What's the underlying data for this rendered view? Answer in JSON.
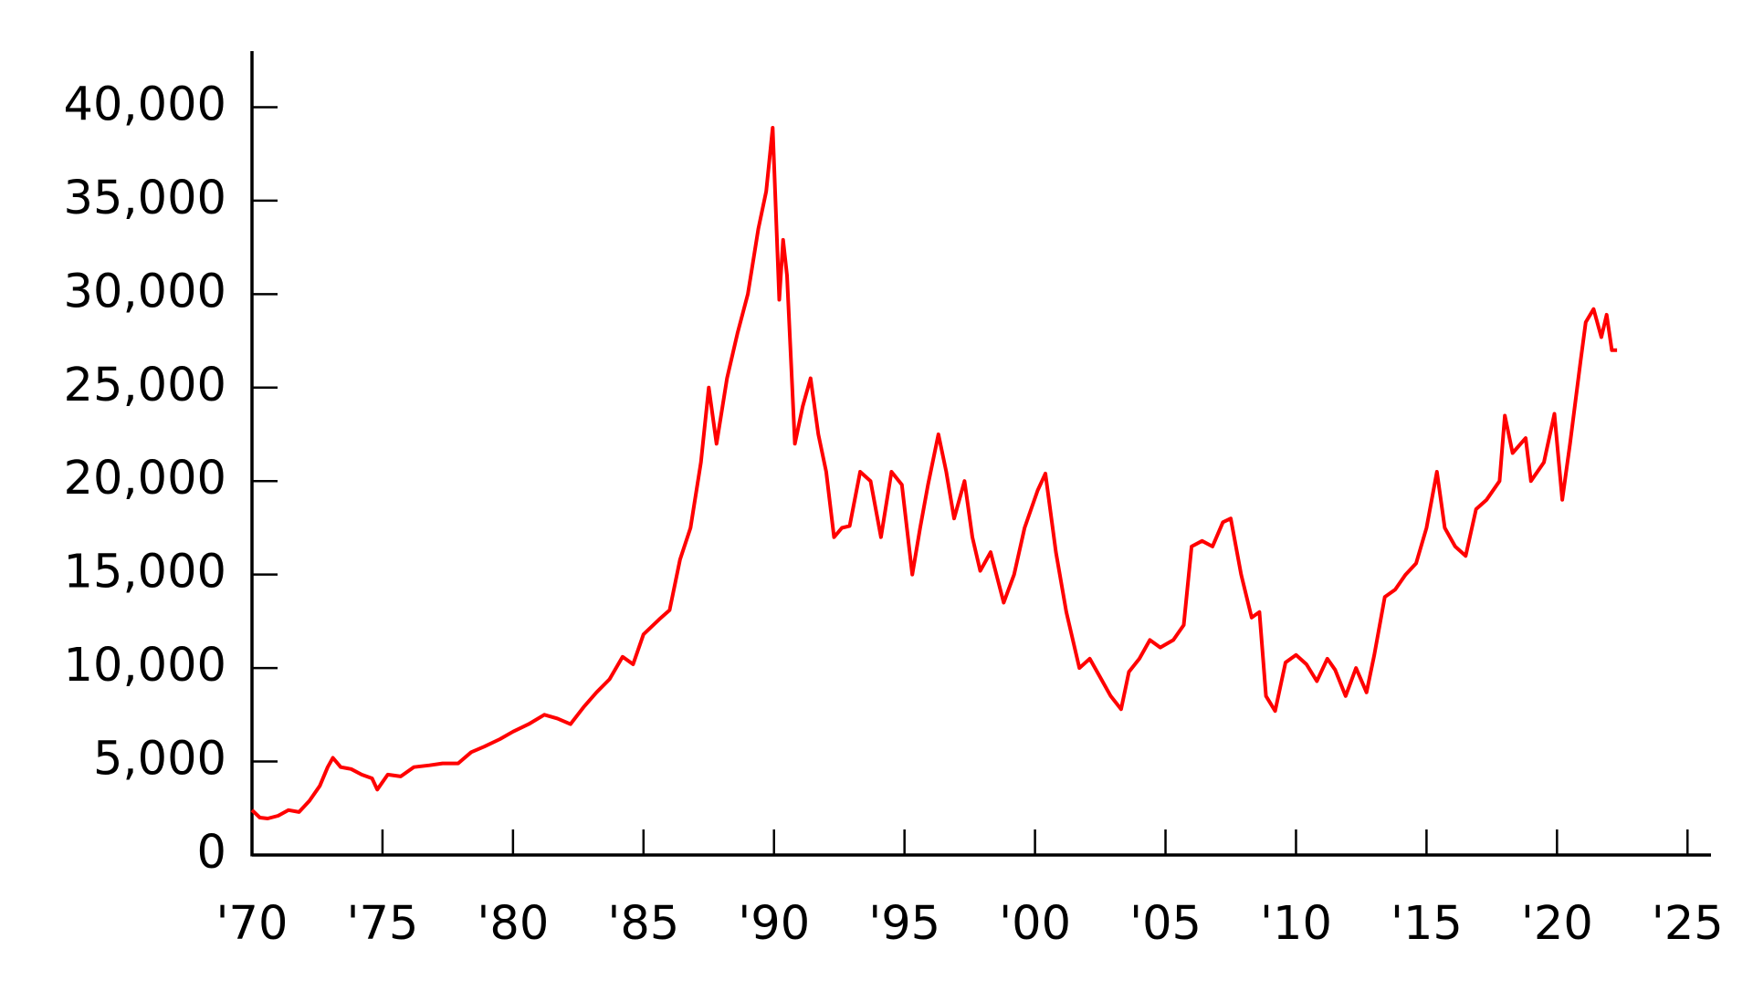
{
  "chart_data": {
    "type": "line",
    "x": [
      1970.0,
      1970.3,
      1970.6,
      1971.0,
      1971.4,
      1971.8,
      1972.2,
      1972.6,
      1972.9,
      1973.1,
      1973.4,
      1973.8,
      1974.2,
      1974.6,
      1974.8,
      1975.2,
      1975.7,
      1976.2,
      1976.8,
      1977.3,
      1977.9,
      1978.4,
      1978.9,
      1979.5,
      1980.0,
      1980.6,
      1981.2,
      1981.7,
      1982.2,
      1982.7,
      1983.2,
      1983.7,
      1984.2,
      1984.6,
      1985.0,
      1985.6,
      1986.0,
      1986.4,
      1986.8,
      1987.2,
      1987.5,
      1987.8,
      1988.2,
      1988.6,
      1989.0,
      1989.4,
      1989.7,
      1989.95,
      1990.2,
      1990.35,
      1990.5,
      1990.8,
      1991.1,
      1991.4,
      1991.7,
      1992.0,
      1992.3,
      1992.6,
      1992.9,
      1993.3,
      1993.7,
      1994.1,
      1994.5,
      1994.9,
      1995.3,
      1995.6,
      1995.9,
      1996.3,
      1996.6,
      1996.9,
      1997.3,
      1997.6,
      1997.9,
      1998.3,
      1998.8,
      1999.2,
      1999.6,
      2000.1,
      2000.4,
      2000.8,
      2001.2,
      2001.7,
      2002.1,
      2002.5,
      2002.9,
      2003.3,
      2003.6,
      2004.0,
      2004.4,
      2004.8,
      2005.3,
      2005.7,
      2006.0,
      2006.4,
      2006.8,
      2007.2,
      2007.5,
      2007.9,
      2008.3,
      2008.6,
      2008.85,
      2009.2,
      2009.6,
      2010.0,
      2010.4,
      2010.8,
      2011.2,
      2011.5,
      2011.9,
      2012.3,
      2012.7,
      2013.0,
      2013.4,
      2013.8,
      2014.2,
      2014.6,
      2015.0,
      2015.4,
      2015.7,
      2016.1,
      2016.5,
      2016.9,
      2017.3,
      2017.8,
      2018.0,
      2018.3,
      2018.8,
      2019.0,
      2019.5,
      2019.9,
      2020.2,
      2020.5,
      2020.9,
      2021.1,
      2021.4,
      2021.7,
      2021.9,
      2022.1,
      2022.3
    ],
    "values": [
      2400,
      2000,
      1950,
      2100,
      2400,
      2300,
      2900,
      3700,
      4700,
      5200,
      4700,
      4600,
      4300,
      4100,
      3500,
      4300,
      4200,
      4700,
      4800,
      4900,
      4900,
      5500,
      5800,
      6200,
      6600,
      7000,
      7500,
      7300,
      7000,
      7900,
      8700,
      9400,
      10600,
      10200,
      11800,
      12600,
      13100,
      15800,
      17500,
      21000,
      25000,
      22000,
      25500,
      27900,
      30000,
      33500,
      35500,
      38900,
      29700,
      32900,
      31000,
      22000,
      24000,
      25500,
      22500,
      20500,
      17000,
      17500,
      17600,
      20500,
      20000,
      17000,
      20500,
      19800,
      15000,
      17500,
      19800,
      22500,
      20500,
      18000,
      20000,
      17000,
      15200,
      16200,
      13500,
      15000,
      17500,
      19500,
      20400,
      16200,
      13000,
      10000,
      10500,
      9500,
      8500,
      7800,
      9800,
      10500,
      11500,
      11100,
      11500,
      12300,
      16500,
      16800,
      16500,
      17800,
      18000,
      15000,
      12700,
      13000,
      8500,
      7700,
      10300,
      10700,
      10200,
      9300,
      10500,
      9900,
      8500,
      10000,
      8700,
      10700,
      13800,
      14200,
      15000,
      15600,
      17500,
      20500,
      17500,
      16500,
      16000,
      18500,
      19000,
      20000,
      23500,
      21500,
      22300,
      20000,
      21000,
      23600,
      19000,
      22000,
      26400,
      28500,
      29200,
      27700,
      28900,
      27000,
      27000
    ],
    "color": "#ff0000",
    "xlim": [
      1970,
      2025.9
    ],
    "ylim": [
      0,
      43000
    ],
    "xticks": [
      {
        "value": 1970,
        "label": "'70"
      },
      {
        "value": 1975,
        "label": "'75"
      },
      {
        "value": 1980,
        "label": "'80"
      },
      {
        "value": 1985,
        "label": "'85"
      },
      {
        "value": 1990,
        "label": "'90"
      },
      {
        "value": 1995,
        "label": "'95"
      },
      {
        "value": 2000,
        "label": "'00"
      },
      {
        "value": 2005,
        "label": "'05"
      },
      {
        "value": 2010,
        "label": "'10"
      },
      {
        "value": 2015,
        "label": "'15"
      },
      {
        "value": 2020,
        "label": "'20"
      },
      {
        "value": 2025,
        "label": "'25"
      }
    ],
    "yticks": [
      0,
      {
        "value": 5000,
        "label": "5,000"
      },
      {
        "value": 10000,
        "label": "10,000"
      },
      {
        "value": 15000,
        "label": "15,000"
      },
      {
        "value": 20000,
        "label": "20,000"
      },
      {
        "value": 25000,
        "label": "25,000"
      },
      {
        "value": 30000,
        "label": "30,000"
      },
      {
        "value": 35000,
        "label": "35,000"
      },
      {
        "value": 40000,
        "label": "40,000"
      }
    ],
    "grid": false
  }
}
